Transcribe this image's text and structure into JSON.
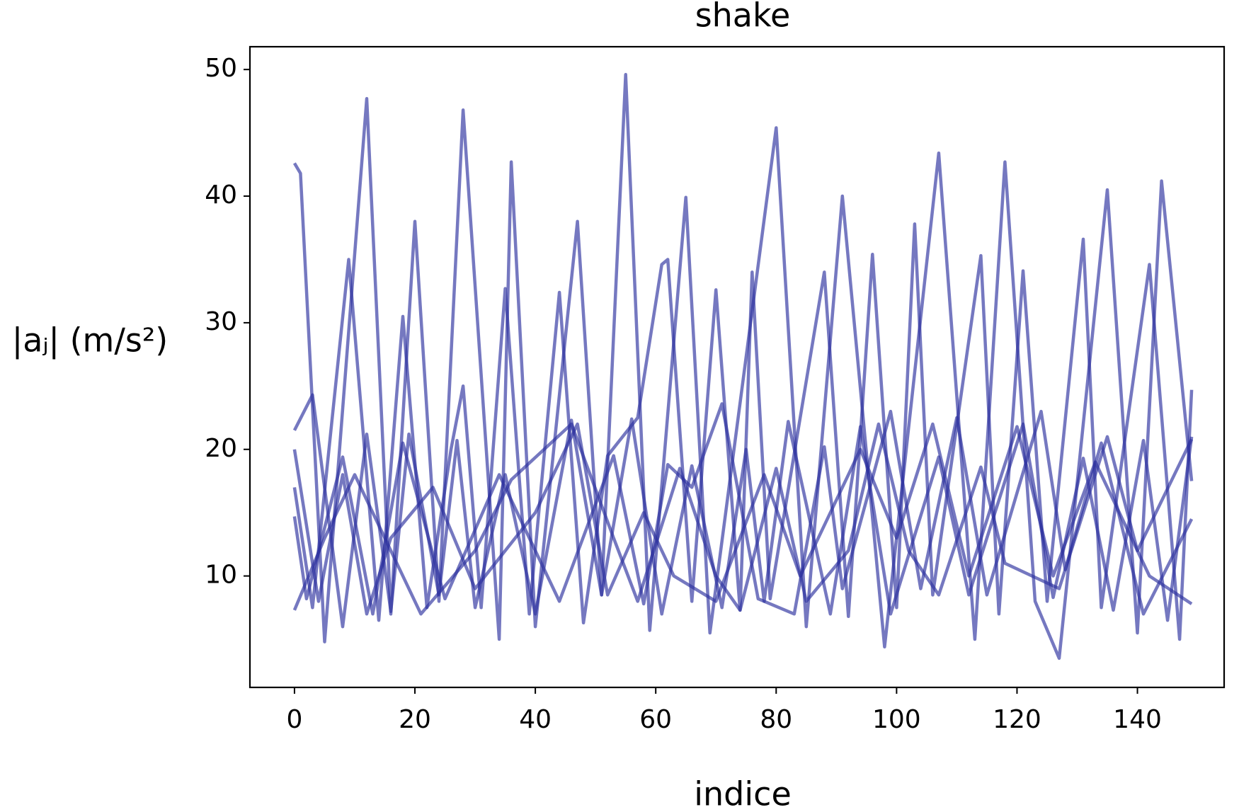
{
  "chart_data": {
    "type": "line",
    "title": "shake",
    "xlabel": "indice",
    "ylabel": "|aⱼ| (m/s²)",
    "xlim": [
      -7.4,
      154.4
    ],
    "xticks": [
      0,
      20,
      40,
      60,
      80,
      100,
      120,
      140
    ],
    "ylim": [
      1.2,
      51.8
    ],
    "yticks": [
      10,
      20,
      30,
      40,
      50
    ],
    "grid": false,
    "series": [
      {
        "color": "#2b2f9e",
        "x": [
          0,
          1,
          5,
          12,
          16,
          20,
          24,
          28,
          34,
          36,
          40,
          47,
          51,
          55,
          59,
          65,
          69,
          80,
          85,
          91,
          98,
          107,
          113,
          118,
          123,
          127,
          135,
          140,
          144,
          149
        ],
        "values": [
          42.6,
          41.8,
          4.8,
          47.7,
          7,
          38,
          8,
          46.8,
          5,
          42.7,
          6,
          38,
          8.5,
          49.6,
          5.7,
          39.9,
          5.5,
          45.4,
          6,
          40,
          4.4,
          43.4,
          5,
          42.7,
          8,
          3.5,
          40.5,
          5.5,
          41.2,
          17.5
        ]
      },
      {
        "color": "#2b2f9e",
        "x": [
          0,
          3,
          9,
          14,
          18,
          22,
          26,
          28,
          31,
          35,
          39,
          44,
          48,
          52,
          57,
          61,
          62,
          66,
          70,
          74,
          76,
          79,
          88,
          92,
          96,
          100,
          103,
          106,
          114,
          117,
          121,
          125,
          131,
          134,
          142,
          147,
          149
        ],
        "values": [
          17,
          7.5,
          35,
          6.5,
          30.5,
          7.5,
          20,
          25,
          7.5,
          32.7,
          7,
          32.4,
          6.3,
          19.5,
          22.5,
          34.6,
          35,
          8,
          32.6,
          7.3,
          34,
          8.2,
          34,
          6.8,
          35.4,
          7.5,
          37.8,
          8.5,
          35.3,
          7,
          34.1,
          8,
          36.6,
          7.5,
          34.6,
          5,
          24.7
        ]
      },
      {
        "color": "#2b2f9e",
        "x": [
          0,
          3,
          8,
          12,
          16,
          19,
          24,
          27,
          30,
          35,
          40,
          46,
          51,
          56,
          61,
          66,
          71,
          75,
          78,
          82,
          89,
          94,
          99,
          107,
          112,
          121,
          126,
          131,
          136,
          141,
          145,
          149
        ],
        "values": [
          21.5,
          24.3,
          6,
          21.2,
          7.2,
          21.2,
          8.5,
          20.7,
          7.5,
          18,
          7,
          22.3,
          8.5,
          22.4,
          7,
          18.7,
          7.5,
          20,
          8,
          22.2,
          7,
          21.8,
          7,
          19.4,
          8.5,
          22,
          8.3,
          19.3,
          7.3,
          20.7,
          6.5,
          21
        ]
      },
      {
        "color": "#2b2f9e",
        "x": [
          0,
          2,
          8,
          13,
          18,
          25,
          34,
          44,
          53,
          58,
          62,
          66,
          71,
          77,
          83,
          88,
          91,
          99,
          104,
          110,
          115,
          124,
          128,
          134,
          141,
          149
        ],
        "values": [
          14.7,
          8.2,
          19.4,
          7,
          20.5,
          8.2,
          18,
          8,
          19.5,
          7.8,
          18.8,
          17,
          23.6,
          8.2,
          7,
          20.2,
          9,
          23,
          9,
          22.5,
          8.5,
          23,
          10.5,
          20.5,
          7,
          14.5
        ]
      },
      {
        "color": "#2b2f9e",
        "x": [
          0,
          5,
          10,
          16,
          21,
          30,
          36,
          46,
          53,
          57,
          64,
          70,
          74,
          80,
          85,
          92,
          97,
          102,
          107,
          114,
          118,
          127,
          135,
          140,
          149
        ],
        "values": [
          7.3,
          13,
          18,
          12,
          7,
          12,
          17.6,
          22,
          13,
          8,
          18.5,
          10,
          7.3,
          18.5,
          8,
          12,
          22,
          12,
          8.5,
          18.6,
          11,
          9,
          21,
          12,
          20.8
        ]
      },
      {
        "color": "#2b2f9e",
        "x": [
          0,
          4,
          8,
          12,
          16,
          23,
          30,
          40,
          47,
          52,
          58,
          63,
          70,
          78,
          84,
          94,
          100,
          106,
          112,
          120,
          126,
          133,
          142,
          149
        ],
        "values": [
          20,
          8,
          18,
          7,
          13,
          17,
          9,
          15,
          22,
          8.5,
          15,
          10,
          8,
          18,
          10,
          20,
          13,
          22,
          10,
          21.8,
          10,
          19,
          10,
          7.8
        ]
      }
    ]
  }
}
